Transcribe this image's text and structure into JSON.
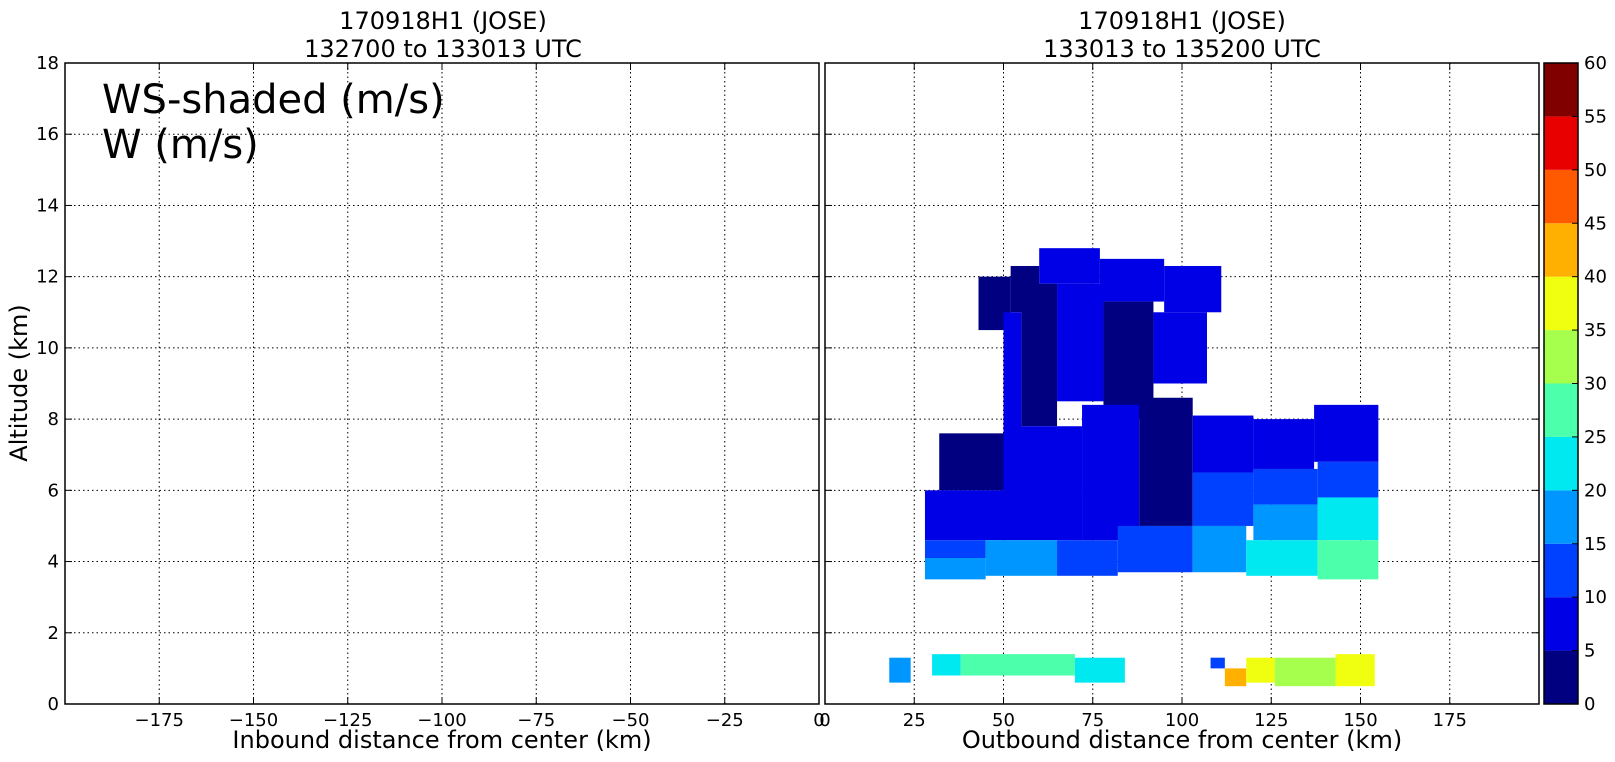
{
  "chart_data": [
    {
      "type": "heatmap",
      "title_line1": "170918H1 (JOSE)",
      "title_line2": "132700 to 133013 UTC",
      "xlabel": "Inbound distance from center (km)",
      "ylabel": "Altitude (km)",
      "xlim": [
        -200,
        0
      ],
      "ylim": [
        0,
        18
      ],
      "x_ticks": [
        -175,
        -150,
        -125,
        -100,
        -75,
        -50,
        -25,
        0
      ],
      "x_tick_labels": [
        "−175",
        "−150",
        "−125",
        "−100",
        "−75",
        "−50",
        "−25",
        "0"
      ],
      "y_ticks": [
        0,
        2,
        4,
        6,
        8,
        10,
        12,
        14,
        16,
        18
      ],
      "y_tick_labels": [
        "0",
        "2",
        "4",
        "6",
        "8",
        "10",
        "12",
        "14",
        "16",
        "18"
      ],
      "grid": true,
      "annotation_line1": "WS-shaded (m/s)",
      "annotation_line2": "W (m/s)",
      "cells": []
    },
    {
      "type": "heatmap",
      "title_line1": "170918H1 (JOSE)",
      "title_line2": "133013 to 135200 UTC",
      "xlabel": "Outbound distance from center (km)",
      "xlim": [
        0,
        200
      ],
      "ylim": [
        0,
        18
      ],
      "x_ticks": [
        0,
        25,
        50,
        75,
        100,
        125,
        150,
        175
      ],
      "x_tick_labels": [
        "0",
        "25",
        "50",
        "75",
        "100",
        "125",
        "150",
        "175"
      ],
      "y_ticks": [
        0,
        2,
        4,
        6,
        8,
        10,
        12,
        14,
        16,
        18
      ],
      "grid": true,
      "cells": [
        {
          "x0": 43,
          "x1": 52,
          "y0": 10.5,
          "y1": 12.0,
          "ws": 3
        },
        {
          "x0": 52,
          "x1": 60,
          "y0": 11.0,
          "y1": 12.3,
          "ws": 3
        },
        {
          "x0": 60,
          "x1": 77,
          "y0": 11.8,
          "y1": 12.8,
          "ws": 7
        },
        {
          "x0": 77,
          "x1": 95,
          "y0": 11.3,
          "y1": 12.5,
          "ws": 7
        },
        {
          "x0": 95,
          "x1": 111,
          "y0": 11.0,
          "y1": 12.3,
          "ws": 7
        },
        {
          "x0": 50,
          "x1": 55,
          "y0": 6.5,
          "y1": 11.0,
          "ws": 7
        },
        {
          "x0": 55,
          "x1": 65,
          "y0": 7.8,
          "y1": 11.8,
          "ws": 3
        },
        {
          "x0": 65,
          "x1": 78,
          "y0": 8.5,
          "y1": 11.8,
          "ws": 7
        },
        {
          "x0": 78,
          "x1": 92,
          "y0": 8.0,
          "y1": 11.3,
          "ws": 3
        },
        {
          "x0": 92,
          "x1": 107,
          "y0": 9.0,
          "y1": 11.0,
          "ws": 7
        },
        {
          "x0": 32,
          "x1": 50,
          "y0": 6.0,
          "y1": 7.6,
          "ws": 3
        },
        {
          "x0": 28,
          "x1": 50,
          "y0": 4.6,
          "y1": 6.0,
          "ws": 7
        },
        {
          "x0": 50,
          "x1": 72,
          "y0": 4.6,
          "y1": 7.8,
          "ws": 7
        },
        {
          "x0": 72,
          "x1": 88,
          "y0": 4.6,
          "y1": 8.4,
          "ws": 7
        },
        {
          "x0": 88,
          "x1": 103,
          "y0": 5.0,
          "y1": 8.6,
          "ws": 3
        },
        {
          "x0": 103,
          "x1": 120,
          "y0": 6.5,
          "y1": 8.1,
          "ws": 7
        },
        {
          "x0": 103,
          "x1": 120,
          "y0": 5.0,
          "y1": 6.5,
          "ws": 12
        },
        {
          "x0": 120,
          "x1": 137,
          "y0": 6.6,
          "y1": 8.0,
          "ws": 7
        },
        {
          "x0": 137,
          "x1": 155,
          "y0": 6.8,
          "y1": 8.4,
          "ws": 7
        },
        {
          "x0": 120,
          "x1": 138,
          "y0": 5.6,
          "y1": 6.6,
          "ws": 12
        },
        {
          "x0": 138,
          "x1": 155,
          "y0": 5.8,
          "y1": 6.8,
          "ws": 12
        },
        {
          "x0": 138,
          "x1": 155,
          "y0": 4.6,
          "y1": 5.8,
          "ws": 22
        },
        {
          "x0": 120,
          "x1": 138,
          "y0": 4.6,
          "y1": 5.6,
          "ws": 17
        },
        {
          "x0": 28,
          "x1": 45,
          "y0": 4.1,
          "y1": 4.6,
          "ws": 12
        },
        {
          "x0": 45,
          "x1": 65,
          "y0": 3.6,
          "y1": 4.6,
          "ws": 17
        },
        {
          "x0": 28,
          "x1": 45,
          "y0": 3.5,
          "y1": 4.1,
          "ws": 17
        },
        {
          "x0": 65,
          "x1": 82,
          "y0": 3.6,
          "y1": 4.6,
          "ws": 12
        },
        {
          "x0": 82,
          "x1": 103,
          "y0": 3.7,
          "y1": 5.0,
          "ws": 12
        },
        {
          "x0": 103,
          "x1": 118,
          "y0": 3.7,
          "y1": 5.0,
          "ws": 17
        },
        {
          "x0": 118,
          "x1": 138,
          "y0": 3.6,
          "y1": 4.6,
          "ws": 22
        },
        {
          "x0": 138,
          "x1": 155,
          "y0": 3.5,
          "y1": 4.6,
          "ws": 27
        },
        {
          "x0": 18,
          "x1": 24,
          "y0": 0.6,
          "y1": 1.3,
          "ws": 17
        },
        {
          "x0": 30,
          "x1": 38,
          "y0": 0.8,
          "y1": 1.4,
          "ws": 22
        },
        {
          "x0": 38,
          "x1": 70,
          "y0": 0.8,
          "y1": 1.4,
          "ws": 27
        },
        {
          "x0": 70,
          "x1": 84,
          "y0": 0.6,
          "y1": 1.3,
          "ws": 22
        },
        {
          "x0": 108,
          "x1": 112,
          "y0": 1.0,
          "y1": 1.3,
          "ws": 12
        },
        {
          "x0": 112,
          "x1": 118,
          "y0": 0.5,
          "y1": 1.0,
          "ws": 42
        },
        {
          "x0": 118,
          "x1": 126,
          "y0": 0.6,
          "y1": 1.3,
          "ws": 37
        },
        {
          "x0": 126,
          "x1": 143,
          "y0": 0.5,
          "y1": 1.3,
          "ws": 32
        },
        {
          "x0": 143,
          "x1": 154,
          "y0": 0.5,
          "y1": 1.4,
          "ws": 38
        }
      ]
    }
  ],
  "colorbar": {
    "min": 0,
    "max": 60,
    "step": 5,
    "tick_labels": [
      "0",
      "5",
      "10",
      "15",
      "20",
      "25",
      "30",
      "35",
      "40",
      "45",
      "50",
      "55",
      "60"
    ],
    "colors": [
      "#000080",
      "#0000e6",
      "#0040ff",
      "#0096ff",
      "#00e8f0",
      "#4cffaa",
      "#a6ff4c",
      "#f0ff10",
      "#ffb000",
      "#ff5a00",
      "#e80000",
      "#800000"
    ]
  }
}
